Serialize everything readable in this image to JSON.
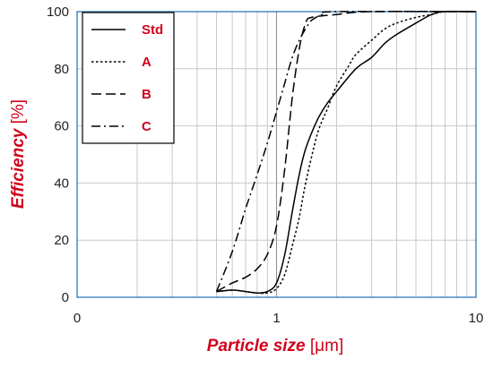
{
  "chart_data": {
    "type": "line",
    "xlabel": "Particle size",
    "xlabel_unit": " [μm]",
    "ylabel": "Efficiency",
    "ylabel_unit": " [%]",
    "xscale": "log",
    "xlim": [
      0.1,
      10
    ],
    "ylim": [
      0,
      100
    ],
    "x_ticks": [
      {
        "value": 0.1,
        "label": "0"
      },
      {
        "value": 1,
        "label": "1"
      },
      {
        "value": 10,
        "label": "10"
      }
    ],
    "y_ticks": [
      0,
      20,
      40,
      60,
      80,
      100
    ],
    "grid": true,
    "legend_position": "top-left",
    "colors": {
      "series": "#000000",
      "label": "#d0021b",
      "axis": "#1f6fb2",
      "grid": "#c8c8c8"
    },
    "series": [
      {
        "name": "Std",
        "dash": "solid",
        "points": [
          [
            0.5,
            2
          ],
          [
            0.6,
            2.5
          ],
          [
            0.7,
            2
          ],
          [
            0.8,
            1.5
          ],
          [
            0.9,
            2
          ],
          [
            1.0,
            5
          ],
          [
            1.1,
            15
          ],
          [
            1.2,
            30
          ],
          [
            1.3,
            43
          ],
          [
            1.4,
            52
          ],
          [
            1.6,
            62
          ],
          [
            1.8,
            68
          ],
          [
            2.0,
            72
          ],
          [
            2.5,
            80
          ],
          [
            3.0,
            84
          ],
          [
            3.5,
            89
          ],
          [
            4.0,
            92
          ],
          [
            5.0,
            96
          ],
          [
            6.0,
            99
          ],
          [
            7.0,
            100
          ],
          [
            10,
            100
          ]
        ]
      },
      {
        "name": "A",
        "dash": "dot",
        "points": [
          [
            0.5,
            2
          ],
          [
            0.6,
            2.5
          ],
          [
            0.7,
            2
          ],
          [
            0.8,
            1.5
          ],
          [
            0.9,
            1.5
          ],
          [
            1.0,
            3
          ],
          [
            1.1,
            8
          ],
          [
            1.2,
            18
          ],
          [
            1.3,
            28
          ],
          [
            1.4,
            40
          ],
          [
            1.6,
            57
          ],
          [
            1.8,
            66
          ],
          [
            2.0,
            74
          ],
          [
            2.3,
            81
          ],
          [
            2.5,
            85
          ],
          [
            3.0,
            90
          ],
          [
            3.5,
            94
          ],
          [
            4.0,
            96
          ],
          [
            5.0,
            98
          ],
          [
            6.0,
            99
          ],
          [
            7.0,
            100
          ],
          [
            10,
            100
          ]
        ]
      },
      {
        "name": "B",
        "dash": "dash",
        "points": [
          [
            0.5,
            2
          ],
          [
            0.6,
            5
          ],
          [
            0.7,
            7
          ],
          [
            0.8,
            10
          ],
          [
            0.9,
            15
          ],
          [
            1.0,
            25
          ],
          [
            1.1,
            45
          ],
          [
            1.2,
            70
          ],
          [
            1.3,
            87
          ],
          [
            1.4,
            96
          ],
          [
            1.5,
            98
          ],
          [
            2.0,
            99
          ],
          [
            3.0,
            100
          ],
          [
            10,
            100
          ]
        ]
      },
      {
        "name": "C",
        "dash": "dashdot",
        "points": [
          [
            0.5,
            2
          ],
          [
            0.6,
            16
          ],
          [
            0.7,
            31
          ],
          [
            0.8,
            43
          ],
          [
            0.9,
            54
          ],
          [
            1.0,
            65
          ],
          [
            1.1,
            75
          ],
          [
            1.2,
            84
          ],
          [
            1.3,
            90
          ],
          [
            1.4,
            94
          ],
          [
            1.5,
            97
          ],
          [
            1.7,
            99
          ],
          [
            2.0,
            100
          ],
          [
            10,
            100
          ]
        ]
      }
    ]
  }
}
